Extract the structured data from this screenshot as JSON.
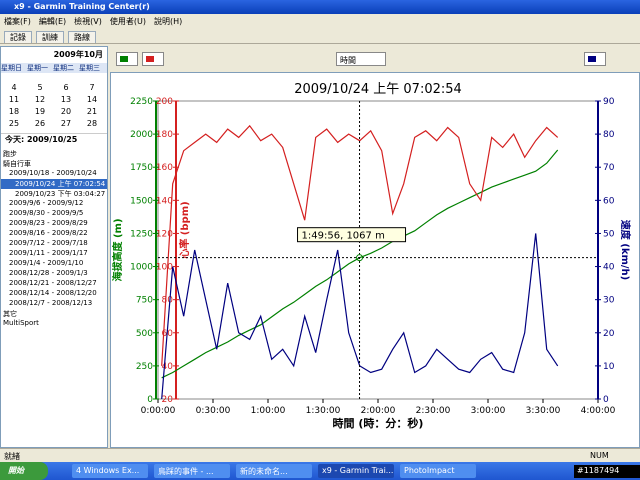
{
  "window": {
    "title": "x9 - Garmin Training Center(r)",
    "menu": [
      "檔案(F)",
      "編輯(E)",
      "檢視(V)",
      "使用者(U)",
      "說明(H)"
    ],
    "toolbar": [
      "記錄",
      "訓練",
      "路線"
    ]
  },
  "calendar": {
    "month": "2009年10月",
    "weekdays": [
      "星期日",
      "星期一",
      "星期二",
      "星期三"
    ],
    "rows": [
      [
        "4",
        "5",
        "6",
        "7"
      ],
      [
        "11",
        "12",
        "13",
        "14"
      ],
      [
        "18",
        "19",
        "20",
        "21"
      ],
      [
        "25",
        "26",
        "27",
        "28"
      ]
    ],
    "today": "今天: 2009/10/25"
  },
  "tree": [
    "跑步",
    "騎自行車",
    "2009/10/18 - 2009/10/24",
    "2009/10/24 上午 07:02:54",
    "2009/10/23 下午 03:04:27",
    "2009/9/6 - 2009/9/12",
    "2009/8/30 - 2009/9/5",
    "2009/8/23 - 2009/8/29",
    "2009/8/16 - 2009/8/22",
    "2009/7/12 - 2009/7/18",
    "2009/1/11 - 2009/1/17",
    "2009/1/4 - 2009/1/10",
    "2008/12/28 - 2009/1/3",
    "2008/12/21 - 2008/12/27",
    "2008/12/14 - 2008/12/20",
    "2008/12/7 - 2008/12/13",
    "其它",
    "MultiSport"
  ],
  "chart_toolbar": {
    "x_mode": "時間"
  },
  "chart_data": {
    "type": "line",
    "title": "2009/10/24 上午 07:02:54",
    "x_label": "時間 (時：分：秒)",
    "y_label": "海拔高度 (m)",
    "y3_label": "心率 (bpm)",
    "y2_label": "速度 (km/h)",
    "xlim": [
      0,
      240
    ],
    "xticks": [
      {
        "value": 0,
        "label": "0:00:00"
      },
      {
        "value": 30,
        "label": "0:30:00"
      },
      {
        "value": 60,
        "label": "1:00:00"
      },
      {
        "value": 90,
        "label": "1:30:00"
      },
      {
        "value": 120,
        "label": "2:00:00"
      },
      {
        "value": 150,
        "label": "2:30:00"
      },
      {
        "value": 180,
        "label": "3:00:00"
      },
      {
        "value": 210,
        "label": "3:30:00"
      },
      {
        "value": 240,
        "label": "4:00:00"
      }
    ],
    "ylim": [
      0,
      2250
    ],
    "yticks": [
      0,
      250,
      500,
      750,
      1000,
      1250,
      1500,
      1750,
      2000,
      2250
    ],
    "y3lim": [
      20,
      200
    ],
    "y3ticks": [
      20,
      40,
      60,
      80,
      100,
      120,
      140,
      160,
      180,
      200
    ],
    "y2lim": [
      0,
      90
    ],
    "y2ticks": [
      0,
      10,
      20,
      30,
      40,
      50,
      60,
      70,
      80,
      90
    ],
    "x": [
      2,
      8,
      14,
      20,
      26,
      32,
      38,
      44,
      50,
      56,
      62,
      68,
      74,
      80,
      86,
      92,
      98,
      104,
      110,
      116,
      122,
      128,
      134,
      140,
      146,
      152,
      158,
      164,
      170,
      176,
      182,
      188,
      194,
      200,
      206,
      212,
      218
    ],
    "series": [
      {
        "name": "海拔高度",
        "color": "#008000",
        "axis": "y",
        "values": [
          160,
          200,
          250,
          300,
          350,
          390,
          430,
          480,
          520,
          560,
          620,
          680,
          730,
          790,
          850,
          900,
          960,
          1020,
          1067,
          1100,
          1140,
          1190,
          1230,
          1270,
          1330,
          1390,
          1440,
          1480,
          1520,
          1560,
          1600,
          1630,
          1660,
          1690,
          1720,
          1780,
          1880
        ]
      },
      {
        "name": "心率",
        "color": "#d42020",
        "axis": "y3",
        "values": [
          40,
          150,
          170,
          175,
          180,
          175,
          183,
          178,
          185,
          176,
          180,
          172,
          150,
          128,
          178,
          183,
          175,
          180,
          176,
          182,
          170,
          132,
          150,
          178,
          182,
          176,
          184,
          178,
          150,
          140,
          178,
          172,
          180,
          166,
          176,
          184,
          178
        ]
      },
      {
        "name": "速度",
        "color": "#000080",
        "axis": "y2",
        "values": [
          0,
          40,
          25,
          45,
          30,
          15,
          35,
          20,
          18,
          25,
          12,
          15,
          10,
          25,
          14,
          30,
          45,
          20,
          10,
          8,
          9,
          15,
          20,
          8,
          10,
          15,
          12,
          9,
          8,
          12,
          14,
          9,
          8,
          20,
          50,
          15,
          10
        ]
      }
    ],
    "cursor": {
      "x": 109.93,
      "y": 1067,
      "label": "1:49:56, 1067 m"
    }
  },
  "status": {
    "left": "就緒",
    "right": "NUM"
  },
  "taskbar": {
    "start": "開始",
    "items": [
      "4 Windows Ex...",
      "鳥踩的事件 - ...",
      "新的未命名...",
      "x9 - Garmin Trai...",
      "PhotoImpact"
    ],
    "tag": "#1187494"
  }
}
